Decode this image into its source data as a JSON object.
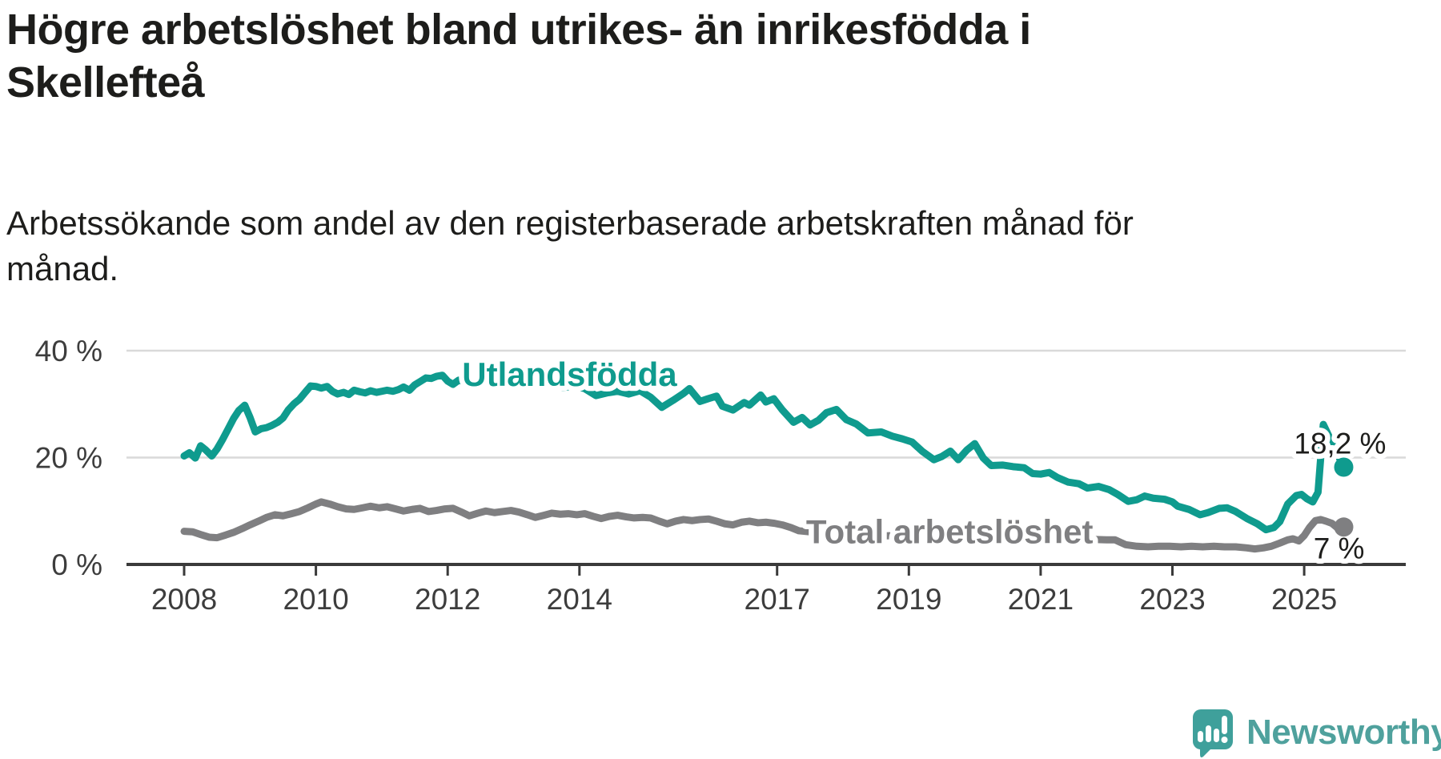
{
  "header": {
    "title_line1": "Högre arbetslöshet bland utrikes- än inrikesfödda i",
    "title_line2": "Skellefteå",
    "subtitle_line1": "Arbetssökande som andel av den registerbaserade arbetskraften månad för",
    "subtitle_line2": "månad."
  },
  "branding": {
    "name": "Newsworthy",
    "icon_color": "#3FA09B",
    "text_color": "#4FA19D"
  },
  "chart_data": {
    "type": "line",
    "unit": "%",
    "grid": true,
    "grid_color": "#d9d9d9",
    "axis_color": "#3a3a3a",
    "tick_label_color": "#3d3d3d",
    "value_label_color": "#1d1d1b",
    "xlim": [
      2007.1,
      2026.5
    ],
    "ylim": [
      0,
      42
    ],
    "x_ticks": [
      2008,
      2010,
      2012,
      2014,
      2017,
      2019,
      2021,
      2023,
      2025
    ],
    "y_ticks": [
      {
        "value": 0,
        "label": "0 %"
      },
      {
        "value": 20,
        "label": "20 %"
      },
      {
        "value": 40,
        "label": "40 %"
      }
    ],
    "series": [
      {
        "name": "Total arbetslöshet",
        "color": "#7F7F81",
        "label_at": [
          2017.44,
          4.0
        ],
        "end_label": "7 %",
        "end_value": 7.0,
        "points": [
          [
            2008.0,
            6.2
          ],
          [
            2008.13,
            6.1
          ],
          [
            2008.25,
            5.6
          ],
          [
            2008.38,
            5.1
          ],
          [
            2008.5,
            5.0
          ],
          [
            2008.63,
            5.5
          ],
          [
            2008.75,
            6.0
          ],
          [
            2008.88,
            6.7
          ],
          [
            2009.0,
            7.4
          ],
          [
            2009.13,
            8.1
          ],
          [
            2009.25,
            8.8
          ],
          [
            2009.38,
            9.3
          ],
          [
            2009.5,
            9.1
          ],
          [
            2009.63,
            9.5
          ],
          [
            2009.75,
            9.9
          ],
          [
            2009.88,
            10.6
          ],
          [
            2010.0,
            11.3
          ],
          [
            2010.08,
            11.7
          ],
          [
            2010.21,
            11.3
          ],
          [
            2010.33,
            10.8
          ],
          [
            2010.46,
            10.4
          ],
          [
            2010.58,
            10.3
          ],
          [
            2010.71,
            10.6
          ],
          [
            2010.83,
            10.9
          ],
          [
            2010.96,
            10.6
          ],
          [
            2011.08,
            10.8
          ],
          [
            2011.21,
            10.4
          ],
          [
            2011.33,
            10.0
          ],
          [
            2011.46,
            10.3
          ],
          [
            2011.58,
            10.5
          ],
          [
            2011.71,
            9.9
          ],
          [
            2011.83,
            10.1
          ],
          [
            2011.96,
            10.4
          ],
          [
            2012.08,
            10.5
          ],
          [
            2012.21,
            9.8
          ],
          [
            2012.33,
            9.1
          ],
          [
            2012.46,
            9.6
          ],
          [
            2012.58,
            10.0
          ],
          [
            2012.71,
            9.7
          ],
          [
            2012.83,
            9.9
          ],
          [
            2012.96,
            10.1
          ],
          [
            2013.08,
            9.8
          ],
          [
            2013.21,
            9.3
          ],
          [
            2013.33,
            8.8
          ],
          [
            2013.46,
            9.2
          ],
          [
            2013.58,
            9.6
          ],
          [
            2013.71,
            9.4
          ],
          [
            2013.83,
            9.5
          ],
          [
            2013.96,
            9.3
          ],
          [
            2014.08,
            9.5
          ],
          [
            2014.21,
            9.0
          ],
          [
            2014.33,
            8.6
          ],
          [
            2014.46,
            9.0
          ],
          [
            2014.58,
            9.2
          ],
          [
            2014.71,
            8.9
          ],
          [
            2014.83,
            8.7
          ],
          [
            2014.96,
            8.8
          ],
          [
            2015.08,
            8.7
          ],
          [
            2015.21,
            8.1
          ],
          [
            2015.33,
            7.6
          ],
          [
            2015.46,
            8.1
          ],
          [
            2015.58,
            8.4
          ],
          [
            2015.71,
            8.2
          ],
          [
            2015.83,
            8.4
          ],
          [
            2015.96,
            8.5
          ],
          [
            2016.08,
            8.1
          ],
          [
            2016.21,
            7.6
          ],
          [
            2016.33,
            7.4
          ],
          [
            2016.46,
            7.9
          ],
          [
            2016.58,
            8.1
          ],
          [
            2016.71,
            7.8
          ],
          [
            2016.83,
            7.9
          ],
          [
            2016.96,
            7.7
          ],
          [
            2017.08,
            7.4
          ],
          [
            2017.21,
            6.9
          ],
          [
            2017.33,
            6.3
          ],
          [
            2017.5,
            6.1
          ],
          [
            2017.67,
            6.2
          ],
          [
            2017.83,
            6.0
          ],
          [
            2018.0,
            5.8
          ],
          [
            2018.25,
            5.5
          ],
          [
            2018.5,
            5.3
          ],
          [
            2018.75,
            5.4
          ],
          [
            2019.0,
            5.2
          ],
          [
            2019.25,
            4.9
          ],
          [
            2019.5,
            4.7
          ],
          [
            2019.75,
            4.9
          ],
          [
            2020.0,
            5.3
          ],
          [
            2020.25,
            5.7
          ],
          [
            2020.5,
            5.6
          ],
          [
            2020.75,
            5.4
          ],
          [
            2021.0,
            5.2
          ],
          [
            2021.25,
            5.0
          ],
          [
            2021.5,
            4.8
          ],
          [
            2021.75,
            4.7
          ],
          [
            2022.0,
            4.6
          ],
          [
            2022.13,
            4.6
          ],
          [
            2022.29,
            3.7
          ],
          [
            2022.46,
            3.4
          ],
          [
            2022.63,
            3.3
          ],
          [
            2022.79,
            3.4
          ],
          [
            2022.96,
            3.4
          ],
          [
            2023.13,
            3.3
          ],
          [
            2023.29,
            3.4
          ],
          [
            2023.46,
            3.3
          ],
          [
            2023.63,
            3.4
          ],
          [
            2023.79,
            3.3
          ],
          [
            2023.96,
            3.3
          ],
          [
            2024.13,
            3.1
          ],
          [
            2024.25,
            2.9
          ],
          [
            2024.38,
            3.1
          ],
          [
            2024.5,
            3.4
          ],
          [
            2024.63,
            4.0
          ],
          [
            2024.75,
            4.6
          ],
          [
            2024.83,
            4.8
          ],
          [
            2024.92,
            4.4
          ],
          [
            2025.0,
            5.4
          ],
          [
            2025.08,
            6.9
          ],
          [
            2025.17,
            8.2
          ],
          [
            2025.25,
            8.4
          ],
          [
            2025.33,
            8.1
          ],
          [
            2025.42,
            7.7
          ],
          [
            2025.5,
            6.9
          ],
          [
            2025.6,
            7.0
          ]
        ]
      },
      {
        "name": "Utlandsfödda",
        "color": "#0F9B8E",
        "label_at": [
          2012.22,
          33.4
        ],
        "end_label": "18,2 %",
        "end_value": 18.2,
        "points": [
          [
            2008.0,
            20.3
          ],
          [
            2008.08,
            20.9
          ],
          [
            2008.17,
            19.9
          ],
          [
            2008.25,
            22.2
          ],
          [
            2008.33,
            21.4
          ],
          [
            2008.42,
            20.3
          ],
          [
            2008.5,
            21.6
          ],
          [
            2008.58,
            23.3
          ],
          [
            2008.67,
            25.4
          ],
          [
            2008.75,
            27.3
          ],
          [
            2008.83,
            28.8
          ],
          [
            2008.92,
            29.8
          ],
          [
            2009.0,
            27.5
          ],
          [
            2009.08,
            24.8
          ],
          [
            2009.17,
            25.4
          ],
          [
            2009.25,
            25.6
          ],
          [
            2009.33,
            26.0
          ],
          [
            2009.42,
            26.6
          ],
          [
            2009.5,
            27.4
          ],
          [
            2009.58,
            28.9
          ],
          [
            2009.67,
            30.1
          ],
          [
            2009.75,
            30.9
          ],
          [
            2009.83,
            32.1
          ],
          [
            2009.92,
            33.4
          ],
          [
            2010.0,
            33.3
          ],
          [
            2010.08,
            33.0
          ],
          [
            2010.17,
            33.3
          ],
          [
            2010.25,
            32.4
          ],
          [
            2010.33,
            31.9
          ],
          [
            2010.42,
            32.2
          ],
          [
            2010.5,
            31.8
          ],
          [
            2010.58,
            32.6
          ],
          [
            2010.67,
            32.3
          ],
          [
            2010.75,
            32.1
          ],
          [
            2010.83,
            32.5
          ],
          [
            2010.92,
            32.2
          ],
          [
            2011.0,
            32.4
          ],
          [
            2011.08,
            32.6
          ],
          [
            2011.17,
            32.4
          ],
          [
            2011.25,
            32.7
          ],
          [
            2011.33,
            33.2
          ],
          [
            2011.42,
            32.6
          ],
          [
            2011.5,
            33.6
          ],
          [
            2011.58,
            34.2
          ],
          [
            2011.67,
            34.9
          ],
          [
            2011.75,
            34.8
          ],
          [
            2011.83,
            35.2
          ],
          [
            2011.92,
            35.4
          ],
          [
            2012.0,
            34.3
          ],
          [
            2012.08,
            33.7
          ],
          [
            2012.17,
            34.5
          ],
          [
            2012.25,
            34.2
          ],
          [
            2012.42,
            33.9
          ],
          [
            2012.58,
            34.3
          ],
          [
            2012.75,
            33.7
          ],
          [
            2012.92,
            34.1
          ],
          [
            2013.08,
            33.6
          ],
          [
            2013.25,
            33.9
          ],
          [
            2013.42,
            33.3
          ],
          [
            2013.58,
            33.7
          ],
          [
            2013.75,
            33.1
          ],
          [
            2013.92,
            33.4
          ],
          [
            2014.08,
            32.9
          ],
          [
            2014.25,
            31.6
          ],
          [
            2014.42,
            32.1
          ],
          [
            2014.58,
            32.4
          ],
          [
            2014.75,
            31.9
          ],
          [
            2014.92,
            32.5
          ],
          [
            2015.08,
            31.3
          ],
          [
            2015.25,
            29.4
          ],
          [
            2015.42,
            30.7
          ],
          [
            2015.58,
            32.0
          ],
          [
            2015.67,
            32.9
          ],
          [
            2015.83,
            30.5
          ],
          [
            2015.95,
            31.0
          ],
          [
            2016.08,
            31.5
          ],
          [
            2016.17,
            29.6
          ],
          [
            2016.33,
            28.9
          ],
          [
            2016.5,
            30.3
          ],
          [
            2016.58,
            29.8
          ],
          [
            2016.75,
            31.7
          ],
          [
            2016.83,
            30.4
          ],
          [
            2016.95,
            31.0
          ],
          [
            2017.08,
            28.9
          ],
          [
            2017.25,
            26.6
          ],
          [
            2017.38,
            27.5
          ],
          [
            2017.5,
            26.1
          ],
          [
            2017.63,
            27.0
          ],
          [
            2017.75,
            28.4
          ],
          [
            2017.9,
            29.0
          ],
          [
            2018.05,
            27.1
          ],
          [
            2018.2,
            26.3
          ],
          [
            2018.38,
            24.6
          ],
          [
            2018.58,
            24.8
          ],
          [
            2018.75,
            24.0
          ],
          [
            2018.9,
            23.5
          ],
          [
            2019.05,
            22.9
          ],
          [
            2019.2,
            21.2
          ],
          [
            2019.38,
            19.6
          ],
          [
            2019.5,
            20.2
          ],
          [
            2019.63,
            21.2
          ],
          [
            2019.75,
            19.6
          ],
          [
            2019.88,
            21.4
          ],
          [
            2020.0,
            22.6
          ],
          [
            2020.13,
            19.9
          ],
          [
            2020.25,
            18.5
          ],
          [
            2020.42,
            18.6
          ],
          [
            2020.58,
            18.3
          ],
          [
            2020.75,
            18.1
          ],
          [
            2020.88,
            17.0
          ],
          [
            2021.0,
            16.9
          ],
          [
            2021.13,
            17.2
          ],
          [
            2021.25,
            16.3
          ],
          [
            2021.42,
            15.4
          ],
          [
            2021.58,
            15.1
          ],
          [
            2021.71,
            14.3
          ],
          [
            2021.88,
            14.6
          ],
          [
            2022.04,
            14.0
          ],
          [
            2022.17,
            13.1
          ],
          [
            2022.33,
            11.8
          ],
          [
            2022.46,
            12.1
          ],
          [
            2022.58,
            12.8
          ],
          [
            2022.71,
            12.4
          ],
          [
            2022.88,
            12.2
          ],
          [
            2023.0,
            11.7
          ],
          [
            2023.08,
            10.9
          ],
          [
            2023.25,
            10.3
          ],
          [
            2023.42,
            9.3
          ],
          [
            2023.54,
            9.7
          ],
          [
            2023.71,
            10.5
          ],
          [
            2023.83,
            10.6
          ],
          [
            2023.96,
            9.9
          ],
          [
            2024.13,
            8.6
          ],
          [
            2024.29,
            7.6
          ],
          [
            2024.42,
            6.5
          ],
          [
            2024.54,
            6.9
          ],
          [
            2024.63,
            8.0
          ],
          [
            2024.75,
            11.3
          ],
          [
            2024.88,
            12.9
          ],
          [
            2024.96,
            13.1
          ],
          [
            2025.04,
            12.3
          ],
          [
            2025.13,
            11.7
          ],
          [
            2025.21,
            13.5
          ],
          [
            2025.29,
            26.2
          ],
          [
            2025.6,
            18.2
          ]
        ]
      }
    ]
  }
}
